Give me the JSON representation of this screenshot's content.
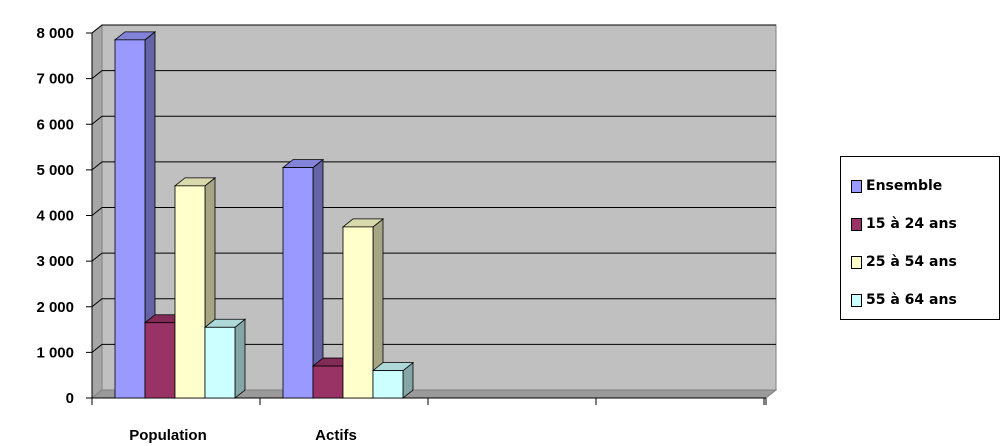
{
  "chart_data": {
    "type": "bar",
    "categories": [
      "Population",
      "Actifs",
      "",
      "",
      ""
    ],
    "series": [
      {
        "name": "Ensemble",
        "values": [
          7850,
          5050,
          null,
          null,
          null
        ],
        "color": "#9999ff"
      },
      {
        "name": "15 à 24 ans",
        "values": [
          1650,
          700,
          null,
          null,
          null
        ],
        "color": "#993366"
      },
      {
        "name": "25 à 54 ans",
        "values": [
          4650,
          3750,
          null,
          null,
          null
        ],
        "color": "#ffffcc"
      },
      {
        "name": "55 à 64 ans",
        "values": [
          1550,
          600,
          null,
          null,
          null
        ],
        "color": "#ccffff"
      }
    ],
    "ylim": [
      0,
      8000
    ],
    "yticks": [
      0,
      1000,
      2000,
      3000,
      4000,
      5000,
      6000,
      7000,
      8000
    ],
    "ytick_labels": [
      "0",
      "1 000",
      "2 000",
      "3 000",
      "4 000",
      "5 000",
      "6 000",
      "7 000",
      "8 000"
    ],
    "grid": true,
    "plot_background": "#c0c0c0",
    "legend_position": "right",
    "style": "3d-clustered-column"
  }
}
